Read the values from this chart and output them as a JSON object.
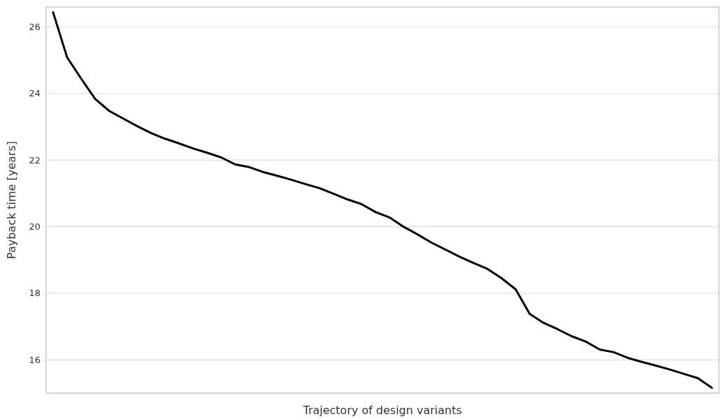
{
  "chart_data": {
    "type": "line",
    "xlabel": "Trajectory of design variants",
    "ylabel": "Payback time [years]",
    "categories": [
      null,
      null,
      null,
      null,
      null,
      null,
      null,
      null,
      null,
      null,
      null,
      null,
      null,
      null,
      null,
      null,
      null,
      null,
      null,
      null,
      null,
      null,
      null,
      null,
      null,
      null,
      null,
      null,
      null,
      null,
      null,
      null,
      null,
      null,
      null,
      null,
      null,
      null,
      null,
      null,
      null,
      null,
      null,
      null,
      null,
      null,
      null,
      null
    ],
    "series": [
      {
        "color": "#000000",
        "values": [
          26.44,
          25.09,
          24.45,
          23.84,
          23.48,
          23.25,
          23.02,
          22.81,
          22.64,
          22.5,
          22.35,
          22.22,
          22.08,
          21.87,
          21.79,
          21.64,
          21.53,
          21.41,
          21.28,
          21.16,
          20.99,
          20.82,
          20.68,
          20.44,
          20.28,
          20.0,
          19.77,
          19.52,
          19.31,
          19.1,
          18.91,
          18.73,
          18.45,
          18.12,
          17.38,
          17.11,
          16.92,
          16.71,
          16.55,
          16.31,
          16.23,
          16.06,
          15.94,
          15.83,
          15.71,
          15.58,
          15.45,
          15.16
        ]
      }
    ],
    "ylim": [
      15,
      26.6
    ],
    "yticks": [
      16,
      18,
      20,
      22,
      24,
      26
    ],
    "grid": "y",
    "tick_labels": "y",
    "marker": "none",
    "line_style": "solid"
  }
}
